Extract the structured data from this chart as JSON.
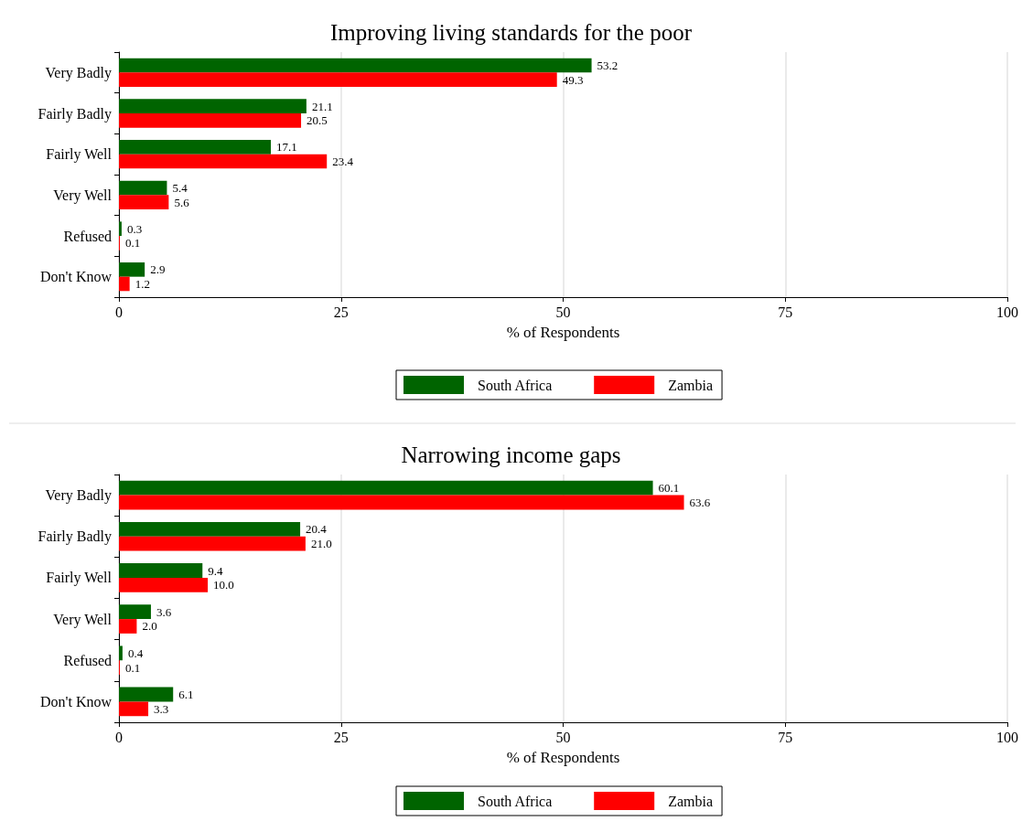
{
  "chart_data": [
    {
      "type": "bar",
      "orientation": "horizontal",
      "title": "Improving living standards for the poor",
      "xlabel": "% of Respondents",
      "categories": [
        "Very Badly",
        "Fairly Badly",
        "Fairly Well",
        "Very Well",
        "Refused",
        "Don't Know"
      ],
      "series": [
        {
          "name": "South Africa",
          "color": "#006400",
          "values": [
            53.2,
            21.1,
            17.1,
            5.4,
            0.3,
            2.9
          ],
          "value_labels": [
            "53.2",
            "21.1",
            "17.1",
            "5.4",
            "0.3",
            "2.9"
          ]
        },
        {
          "name": "Zambia",
          "color": "#ff0000",
          "values": [
            49.3,
            20.5,
            23.4,
            5.6,
            0.1,
            1.2
          ],
          "value_labels": [
            "49.3",
            "20.5",
            "23.4",
            "5.6",
            "0.1",
            "1.2"
          ]
        }
      ],
      "xlim": [
        0,
        100
      ],
      "xticks": [
        0,
        25,
        50,
        75,
        100
      ],
      "grid": "x",
      "legend": "bottom"
    },
    {
      "type": "bar",
      "orientation": "horizontal",
      "title": "Narrowing income gaps",
      "xlabel": "% of Respondents",
      "categories": [
        "Very Badly",
        "Fairly Badly",
        "Fairly Well",
        "Very Well",
        "Refused",
        "Don't Know"
      ],
      "series": [
        {
          "name": "South Africa",
          "color": "#006400",
          "values": [
            60.1,
            20.4,
            9.4,
            3.6,
            0.4,
            6.1
          ],
          "value_labels": [
            "60.1",
            "20.4",
            "9.4",
            "3.6",
            "0.4",
            "6.1"
          ]
        },
        {
          "name": "Zambia",
          "color": "#ff0000",
          "values": [
            63.6,
            21.0,
            10.0,
            2.0,
            0.1,
            3.3
          ],
          "value_labels": [
            "63.6",
            "21.0",
            "10.0",
            "2.0",
            "0.1",
            "3.3"
          ]
        }
      ],
      "xlim": [
        0,
        100
      ],
      "xticks": [
        0,
        25,
        50,
        75,
        100
      ],
      "grid": "x",
      "legend": "bottom"
    }
  ]
}
